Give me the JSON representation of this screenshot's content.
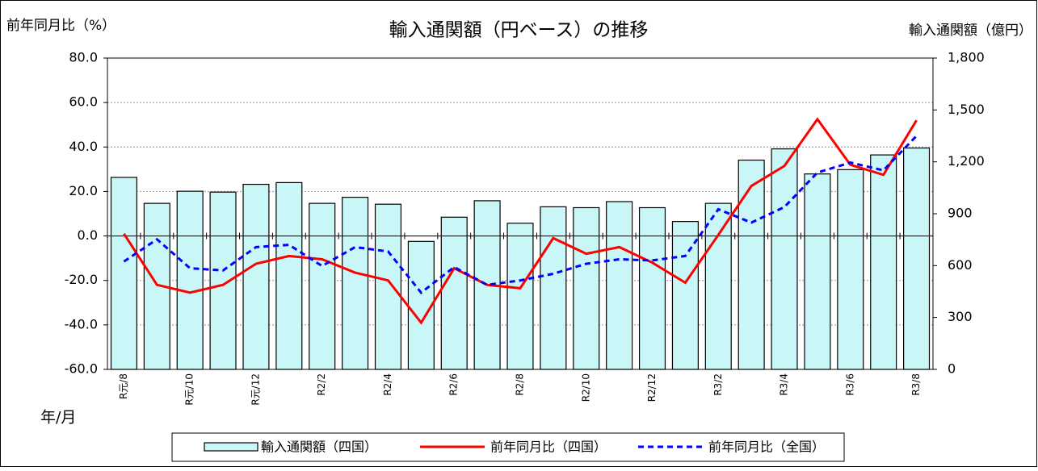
{
  "chart_data": {
    "type": "bar-line",
    "title": "輸入通関額（円ベース）の推移",
    "y_label": "前年同月比（%）",
    "y2_label": "輸入通関額（億円）",
    "x_label": "年/月",
    "categories": [
      "R元/8",
      null,
      "R元/10",
      null,
      "R元/12",
      null,
      "R2/2",
      null,
      "R2/4",
      null,
      "R2/6",
      null,
      "R2/8",
      null,
      "R2/10",
      null,
      "R2/12",
      null,
      "R3/2",
      null,
      "R3/4",
      null,
      "R3/6",
      null,
      "R3/8"
    ],
    "series": [
      {
        "name": "輸入通関額（四国）",
        "type": "bar",
        "axis": "y2",
        "color": "#c9f7f7",
        "values": [
          1110,
          960,
          1030,
          1025,
          1070,
          1080,
          960,
          995,
          955,
          740,
          880,
          975,
          845,
          940,
          935,
          970,
          935,
          855,
          960,
          1210,
          1275,
          1130,
          1155,
          1240,
          1280
        ]
      },
      {
        "name": "前年同月比（四国）",
        "type": "line",
        "color": "#ff0000",
        "values": [
          1,
          -22,
          -25.5,
          -22,
          -12.5,
          -9,
          -10.5,
          -16.5,
          -20,
          -39,
          -14.5,
          -22,
          -23.5,
          -1,
          -8,
          -5,
          -12,
          -21,
          0.5,
          22.5,
          31.5,
          52.5,
          32,
          27.5,
          52
        ]
      },
      {
        "name": "前年同月比（全国）",
        "type": "line",
        "dashed": true,
        "color": "#0000ff",
        "values": [
          -11.5,
          -1.5,
          -14.5,
          -15.5,
          -5,
          -4,
          -13.5,
          -5,
          -7,
          -25.5,
          -14,
          -22,
          -20,
          -17,
          -12.5,
          -10.5,
          -11,
          -9,
          12,
          6,
          13,
          28.5,
          33,
          29.5,
          45
        ]
      }
    ],
    "ylim": [
      -60,
      80
    ],
    "yticks": [
      {
        "value": -60,
        "label": "-60.0"
      },
      {
        "value": -40,
        "label": "-40.0"
      },
      {
        "value": -20,
        "label": "-20.0"
      },
      {
        "value": 0,
        "label": "0.0"
      },
      {
        "value": 20,
        "label": "20.0"
      },
      {
        "value": 40,
        "label": "40.0"
      },
      {
        "value": 60,
        "label": "60.0"
      },
      {
        "value": 80,
        "label": "80.0"
      }
    ],
    "y2lim": [
      0,
      1800
    ],
    "y2ticks": [
      0,
      300,
      600,
      900,
      {
        "value": 1200,
        "label": "1,200"
      },
      {
        "value": 1500,
        "label": "1,500"
      },
      {
        "value": 1800,
        "label": "1,800"
      }
    ],
    "grid": true,
    "legend": "bottom"
  }
}
